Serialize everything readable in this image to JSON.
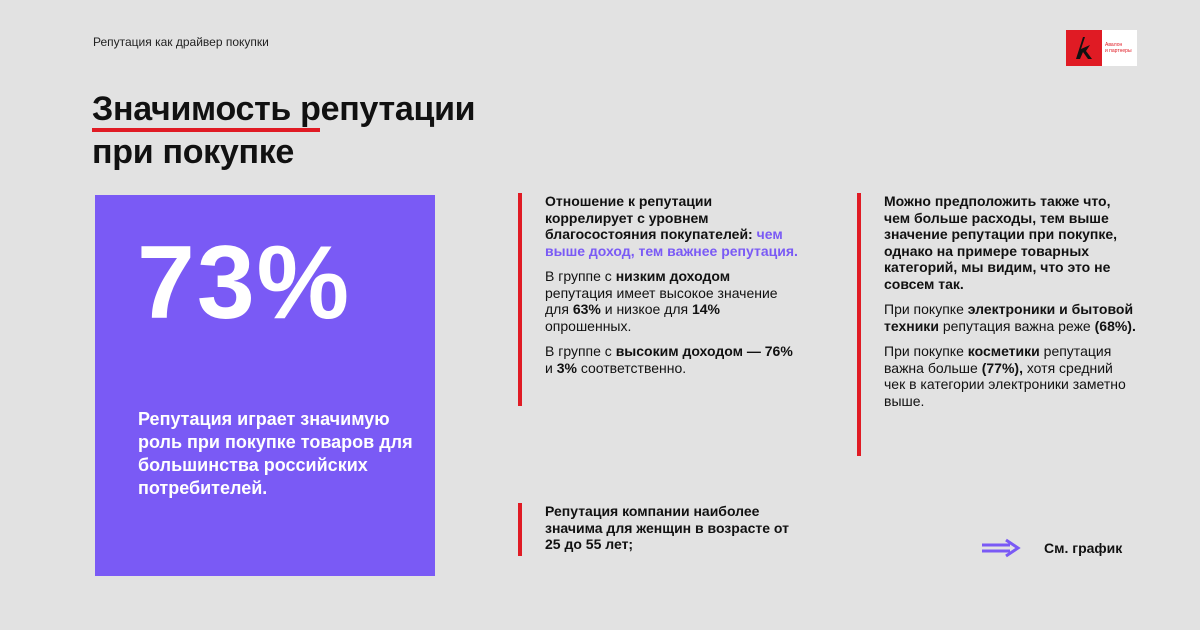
{
  "header": {
    "eyebrow": "Репутация как драйвер покупки",
    "logo_text_1": "Авалон",
    "logo_text_2": "и партнеры"
  },
  "title": {
    "line1": "Значимость репутации",
    "line2": "при покупке"
  },
  "card": {
    "percent": "73%",
    "text": "Репутация играет значимую роль при покупке товаров для большинства российских потребителей."
  },
  "column1": {
    "lead": "Отношение к репутации коррелирует с уровнем благосостояния покупателей:",
    "lead_accent": "чем выше доход, тем важнее репутация.",
    "p2_pre": "В группе с",
    "p2_bold": "низким доходом",
    "p2_mid": "репутация имеет высокое значение для",
    "p2_v1": "63%",
    "p2_mid2": "и низкое для",
    "p2_v2": "14%",
    "p2_post": "опрошенных.",
    "p3_pre": "В группе с",
    "p3_bold": "высоким доходом —",
    "p3_v1": "76%",
    "p3_mid": "и",
    "p3_v2": "3%",
    "p3_post": "соответственно."
  },
  "column2": {
    "lead": "Можно предположить также что, чем больше расходы, тем выше значение репутации при покупке, однако на примере товарных категорий, мы видим, что это не совсем так.",
    "p2_pre": "При покупке",
    "p2_bold": "электроники и бытовой техники",
    "p2_mid": "репутация важна реже",
    "p2_v": "(68%).",
    "p3_pre": "При покупке",
    "p3_bold": "косметики",
    "p3_mid": "репутация важна больше",
    "p3_v": "(77%),",
    "p3_post": "хотя средний чек в категории электроники заметно выше."
  },
  "column3": {
    "lead": "Репутация компании наиболее значима для женщин в возрасте от 25 до 55 лет;"
  },
  "see_chart": {
    "label": "См. график"
  },
  "colors": {
    "accent_red": "#e01b24",
    "accent_purple": "#7a5af5",
    "background": "#e2e2e2"
  }
}
